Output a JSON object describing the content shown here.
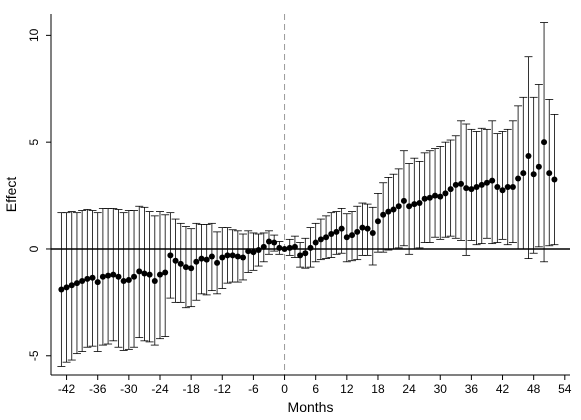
{
  "chart_data": {
    "type": "scatter",
    "title": "",
    "xlabel": "Months",
    "ylabel": "Effect",
    "xlim": [
      -45,
      55
    ],
    "ylim": [
      -5.9,
      11.0
    ],
    "xticks": [
      -42,
      -36,
      -30,
      -24,
      -18,
      -12,
      -6,
      0,
      6,
      12,
      18,
      24,
      30,
      36,
      42,
      48,
      54
    ],
    "yticks": [
      -5,
      0,
      5,
      10
    ],
    "reference_lines": {
      "horizontal_y": 0,
      "vertical_x": 0
    },
    "colors": {
      "points": "#000000",
      "error_bars": "#000000",
      "vertical_ref": "#999999"
    },
    "series": [
      {
        "points": [
          {
            "x": -43,
            "y": -1.9,
            "lo": -5.5,
            "hi": 1.7
          },
          {
            "x": -42,
            "y": -1.8,
            "lo": -5.3,
            "hi": 1.7
          },
          {
            "x": -41,
            "y": -1.7,
            "lo": -5.2,
            "hi": 1.75
          },
          {
            "x": -40,
            "y": -1.6,
            "lo": -4.9,
            "hi": 1.7
          },
          {
            "x": -39,
            "y": -1.5,
            "lo": -4.8,
            "hi": 1.8
          },
          {
            "x": -38,
            "y": -1.4,
            "lo": -4.6,
            "hi": 1.85
          },
          {
            "x": -37,
            "y": -1.35,
            "lo": -4.55,
            "hi": 1.8
          },
          {
            "x": -36,
            "y": -1.55,
            "lo": -4.8,
            "hi": 1.7
          },
          {
            "x": -35,
            "y": -1.3,
            "lo": -4.5,
            "hi": 1.9
          },
          {
            "x": -34,
            "y": -1.25,
            "lo": -4.45,
            "hi": 1.9
          },
          {
            "x": -33,
            "y": -1.2,
            "lo": -4.3,
            "hi": 1.9
          },
          {
            "x": -32,
            "y": -1.3,
            "lo": -4.6,
            "hi": 1.85
          },
          {
            "x": -31,
            "y": -1.5,
            "lo": -4.75,
            "hi": 1.7
          },
          {
            "x": -30,
            "y": -1.45,
            "lo": -4.7,
            "hi": 1.8
          },
          {
            "x": -29,
            "y": -1.3,
            "lo": -4.6,
            "hi": 1.8
          },
          {
            "x": -28,
            "y": -1.05,
            "lo": -4.15,
            "hi": 2.0
          },
          {
            "x": -27,
            "y": -1.15,
            "lo": -4.3,
            "hi": 1.95
          },
          {
            "x": -26,
            "y": -1.2,
            "lo": -4.35,
            "hi": 1.75
          },
          {
            "x": -25,
            "y": -1.5,
            "lo": -4.5,
            "hi": 1.55
          },
          {
            "x": -24,
            "y": -1.2,
            "lo": -4.2,
            "hi": 1.75
          },
          {
            "x": -23,
            "y": -1.1,
            "lo": -4.1,
            "hi": 1.6
          },
          {
            "x": -22,
            "y": -0.3,
            "lo": -2.3,
            "hi": 1.7
          },
          {
            "x": -21,
            "y": -0.55,
            "lo": -2.5,
            "hi": 1.4
          },
          {
            "x": -20,
            "y": -0.7,
            "lo": -2.5,
            "hi": 1.2
          },
          {
            "x": -19,
            "y": -0.85,
            "lo": -2.75,
            "hi": 1.05
          },
          {
            "x": -18,
            "y": -0.9,
            "lo": -2.7,
            "hi": 0.95
          },
          {
            "x": -17,
            "y": -0.6,
            "lo": -2.4,
            "hi": 1.2
          },
          {
            "x": -16,
            "y": -0.45,
            "lo": -2.1,
            "hi": 1.15
          },
          {
            "x": -15,
            "y": -0.5,
            "lo": -2.15,
            "hi": 1.15
          },
          {
            "x": -14,
            "y": -0.35,
            "lo": -1.95,
            "hi": 1.2
          },
          {
            "x": -13,
            "y": -0.65,
            "lo": -2.1,
            "hi": 0.8
          },
          {
            "x": -12,
            "y": -0.4,
            "lo": -1.85,
            "hi": 1.0
          },
          {
            "x": -11,
            "y": -0.3,
            "lo": -1.6,
            "hi": 1.0
          },
          {
            "x": -10,
            "y": -0.3,
            "lo": -1.55,
            "hi": 0.9
          },
          {
            "x": -9,
            "y": -0.35,
            "lo": -1.55,
            "hi": 0.85
          },
          {
            "x": -8,
            "y": -0.4,
            "lo": -1.45,
            "hi": 0.7
          },
          {
            "x": -7,
            "y": -0.1,
            "lo": -1.1,
            "hi": 0.85
          },
          {
            "x": -6,
            "y": -0.15,
            "lo": -1.0,
            "hi": 0.75
          },
          {
            "x": -5,
            "y": -0.05,
            "lo": -0.8,
            "hi": 0.7
          },
          {
            "x": -4,
            "y": 0.1,
            "lo": -0.6,
            "hi": 0.75
          },
          {
            "x": -3,
            "y": 0.35,
            "lo": -0.25,
            "hi": 0.85
          },
          {
            "x": -2,
            "y": 0.3,
            "lo": -0.1,
            "hi": 0.65
          },
          {
            "x": -1,
            "y": 0.05,
            "lo": -0.25,
            "hi": 0.35
          },
          {
            "x": 0,
            "y": 0.0,
            "lo": 0.0,
            "hi": 0.0
          },
          {
            "x": 1,
            "y": 0.05,
            "lo": -0.3,
            "hi": 0.45
          },
          {
            "x": 2,
            "y": 0.1,
            "lo": -0.4,
            "hi": 0.6
          },
          {
            "x": 3,
            "y": -0.3,
            "lo": -0.85,
            "hi": 0.3
          },
          {
            "x": 4,
            "y": -0.2,
            "lo": -0.9,
            "hi": 0.5
          },
          {
            "x": 5,
            "y": 0.05,
            "lo": -0.85,
            "hi": 1.0
          },
          {
            "x": 6,
            "y": 0.3,
            "lo": -0.6,
            "hi": 1.2
          },
          {
            "x": 7,
            "y": 0.45,
            "lo": -0.5,
            "hi": 1.4
          },
          {
            "x": 8,
            "y": 0.55,
            "lo": -0.45,
            "hi": 1.55
          },
          {
            "x": 9,
            "y": 0.7,
            "lo": -0.4,
            "hi": 1.7
          },
          {
            "x": 10,
            "y": 0.8,
            "lo": -0.25,
            "hi": 1.75
          },
          {
            "x": 11,
            "y": 0.95,
            "lo": -0.2,
            "hi": 1.9
          },
          {
            "x": 12,
            "y": 0.55,
            "lo": -0.6,
            "hi": 1.65
          },
          {
            "x": 13,
            "y": 0.65,
            "lo": -0.55,
            "hi": 1.75
          },
          {
            "x": 14,
            "y": 0.8,
            "lo": -0.5,
            "hi": 2.0
          },
          {
            "x": 15,
            "y": 1.0,
            "lo": -0.3,
            "hi": 2.15
          },
          {
            "x": 16,
            "y": 0.95,
            "lo": -0.3,
            "hi": 2.1
          },
          {
            "x": 17,
            "y": 0.75,
            "lo": -0.75,
            "hi": 1.95
          },
          {
            "x": 18,
            "y": 1.3,
            "lo": -0.15,
            "hi": 2.6
          },
          {
            "x": 19,
            "y": 1.6,
            "lo": -0.15,
            "hi": 3.1
          },
          {
            "x": 20,
            "y": 1.75,
            "lo": -0.05,
            "hi": 3.35
          },
          {
            "x": 21,
            "y": 1.85,
            "lo": 0.0,
            "hi": 3.5
          },
          {
            "x": 22,
            "y": 2.0,
            "lo": 0.05,
            "hi": 3.75
          },
          {
            "x": 23,
            "y": 2.25,
            "lo": 0.15,
            "hi": 4.6
          },
          {
            "x": 24,
            "y": 2.0,
            "lo": -0.25,
            "hi": 4.0
          },
          {
            "x": 25,
            "y": 2.1,
            "lo": 0.0,
            "hi": 4.25
          },
          {
            "x": 26,
            "y": 2.15,
            "lo": 0.05,
            "hi": 4.1
          },
          {
            "x": 27,
            "y": 2.35,
            "lo": 0.3,
            "hi": 4.5
          },
          {
            "x": 28,
            "y": 2.4,
            "lo": 0.3,
            "hi": 4.6
          },
          {
            "x": 29,
            "y": 2.5,
            "lo": 0.55,
            "hi": 4.7
          },
          {
            "x": 30,
            "y": 2.45,
            "lo": 0.45,
            "hi": 4.8
          },
          {
            "x": 31,
            "y": 2.6,
            "lo": 0.55,
            "hi": 5.0
          },
          {
            "x": 32,
            "y": 2.8,
            "lo": 0.6,
            "hi": 5.1
          },
          {
            "x": 33,
            "y": 3.0,
            "lo": 0.5,
            "hi": 5.3
          },
          {
            "x": 34,
            "y": 3.05,
            "lo": 0.4,
            "hi": 6.0
          },
          {
            "x": 35,
            "y": 2.85,
            "lo": -0.3,
            "hi": 5.85
          },
          {
            "x": 36,
            "y": 2.8,
            "lo": 0.4,
            "hi": 5.6
          },
          {
            "x": 37,
            "y": 2.9,
            "lo": 0.2,
            "hi": 5.5
          },
          {
            "x": 38,
            "y": 3.0,
            "lo": 0.25,
            "hi": 5.65
          },
          {
            "x": 39,
            "y": 3.1,
            "lo": 0.5,
            "hi": 5.6
          },
          {
            "x": 40,
            "y": 3.2,
            "lo": 0.25,
            "hi": 6.0
          },
          {
            "x": 41,
            "y": 2.9,
            "lo": 0.3,
            "hi": 5.4
          },
          {
            "x": 42,
            "y": 2.75,
            "lo": 0.45,
            "hi": 5.5
          },
          {
            "x": 43,
            "y": 2.9,
            "lo": 0.2,
            "hi": 5.6
          },
          {
            "x": 44,
            "y": 2.9,
            "lo": 0.3,
            "hi": 6.0
          },
          {
            "x": 45,
            "y": 3.3,
            "lo": 0.0,
            "hi": 6.7
          },
          {
            "x": 46,
            "y": 3.55,
            "lo": 0.0,
            "hi": 7.1
          },
          {
            "x": 47,
            "y": 4.35,
            "lo": -0.45,
            "hi": 9.0
          },
          {
            "x": 48,
            "y": 3.5,
            "lo": -0.2,
            "hi": 7.1
          },
          {
            "x": 49,
            "y": 3.85,
            "lo": 0.1,
            "hi": 7.7
          },
          {
            "x": 50,
            "y": 5.0,
            "lo": -0.6,
            "hi": 10.6
          },
          {
            "x": 51,
            "y": 3.55,
            "lo": 0.15,
            "hi": 7.0
          },
          {
            "x": 52,
            "y": 3.25,
            "lo": 0.2,
            "hi": 6.3
          }
        ]
      }
    ]
  }
}
